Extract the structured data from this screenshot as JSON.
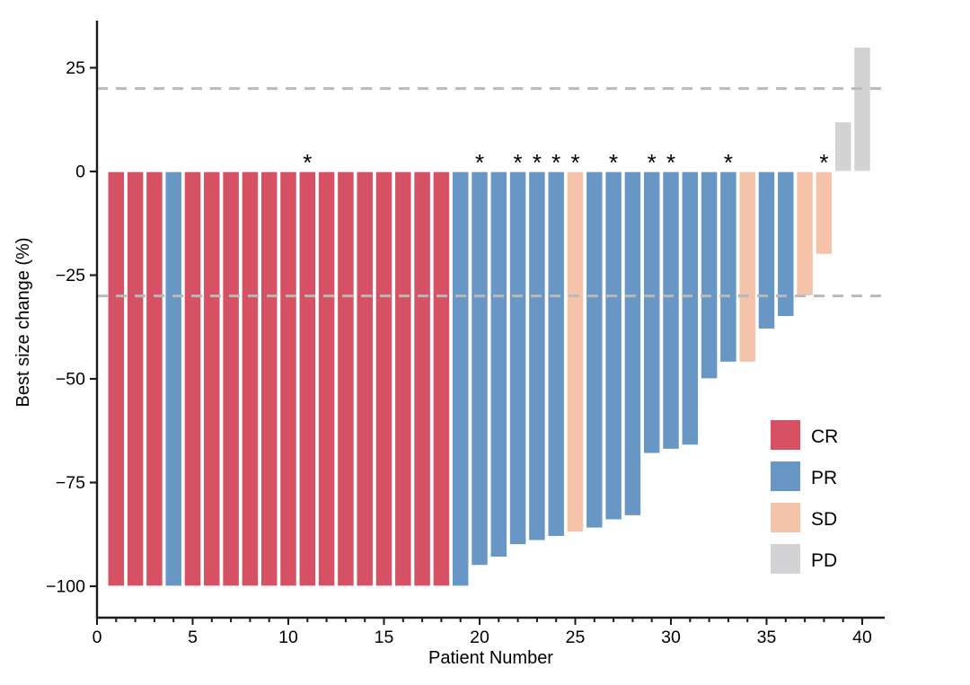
{
  "chart_data": {
    "type": "bar",
    "title": "",
    "xlabel": "Patient Number",
    "ylabel": "Best size change (%)",
    "x": [
      1,
      2,
      3,
      4,
      5,
      6,
      7,
      8,
      9,
      10,
      11,
      12,
      13,
      14,
      15,
      16,
      17,
      18,
      19,
      20,
      21,
      22,
      23,
      24,
      25,
      26,
      27,
      28,
      29,
      30,
      31,
      32,
      33,
      34,
      35,
      36,
      37,
      38,
      39,
      40
    ],
    "values": [
      -100,
      -100,
      -100,
      -100,
      -100,
      -100,
      -100,
      -100,
      -100,
      -100,
      -100,
      -100,
      -100,
      -100,
      -100,
      -100,
      -100,
      -100,
      -100,
      -95,
      -93,
      -90,
      -89,
      -88,
      -87,
      -86,
      -84,
      -83,
      -68,
      -67,
      -66,
      -50,
      -46,
      -46,
      -38,
      -35,
      -30,
      -20,
      12,
      30
    ],
    "response": [
      "CR",
      "CR",
      "CR",
      "PR",
      "CR",
      "CR",
      "CR",
      "CR",
      "CR",
      "CR",
      "CR",
      "CR",
      "CR",
      "CR",
      "CR",
      "CR",
      "CR",
      "CR",
      "PR",
      "PR",
      "PR",
      "PR",
      "PR",
      "PR",
      "SD",
      "PR",
      "PR",
      "PR",
      "PR",
      "PR",
      "PR",
      "PR",
      "PR",
      "SD",
      "PR",
      "PR",
      "SD",
      "SD",
      "PD",
      "PD"
    ],
    "asterisk_patients": [
      11,
      20,
      22,
      23,
      24,
      25,
      27,
      29,
      30,
      33,
      38
    ],
    "asterisk_symbol": "*",
    "reference_lines": [
      20,
      -30
    ],
    "xlim": [
      0,
      41.2
    ],
    "ylim": [
      -107,
      36
    ],
    "x_ticks": [
      0,
      5,
      10,
      15,
      20,
      25,
      30,
      35,
      40
    ],
    "y_ticks": [
      25,
      0,
      -25,
      -50,
      -75,
      -100
    ],
    "y_tick_labels": [
      "25",
      "0",
      "−25",
      "−50",
      "−75",
      "−100"
    ],
    "grid": "off",
    "legend_position": "right-middle",
    "legend": [
      {
        "label": "CR",
        "color": "#D65164"
      },
      {
        "label": "PR",
        "color": "#6897C6"
      },
      {
        "label": "SD",
        "color": "#F5C3A9"
      },
      {
        "label": "PD",
        "color": "#D3D3D5"
      }
    ],
    "colors": {
      "CR": "#D65164",
      "PR": "#6897C6",
      "SD": "#F5C3A9",
      "PD": "#D3D3D5",
      "reference_line": "#B9B9B9",
      "axis": "#1A1A1A",
      "bar_stroke": "#FFFFFF"
    }
  }
}
